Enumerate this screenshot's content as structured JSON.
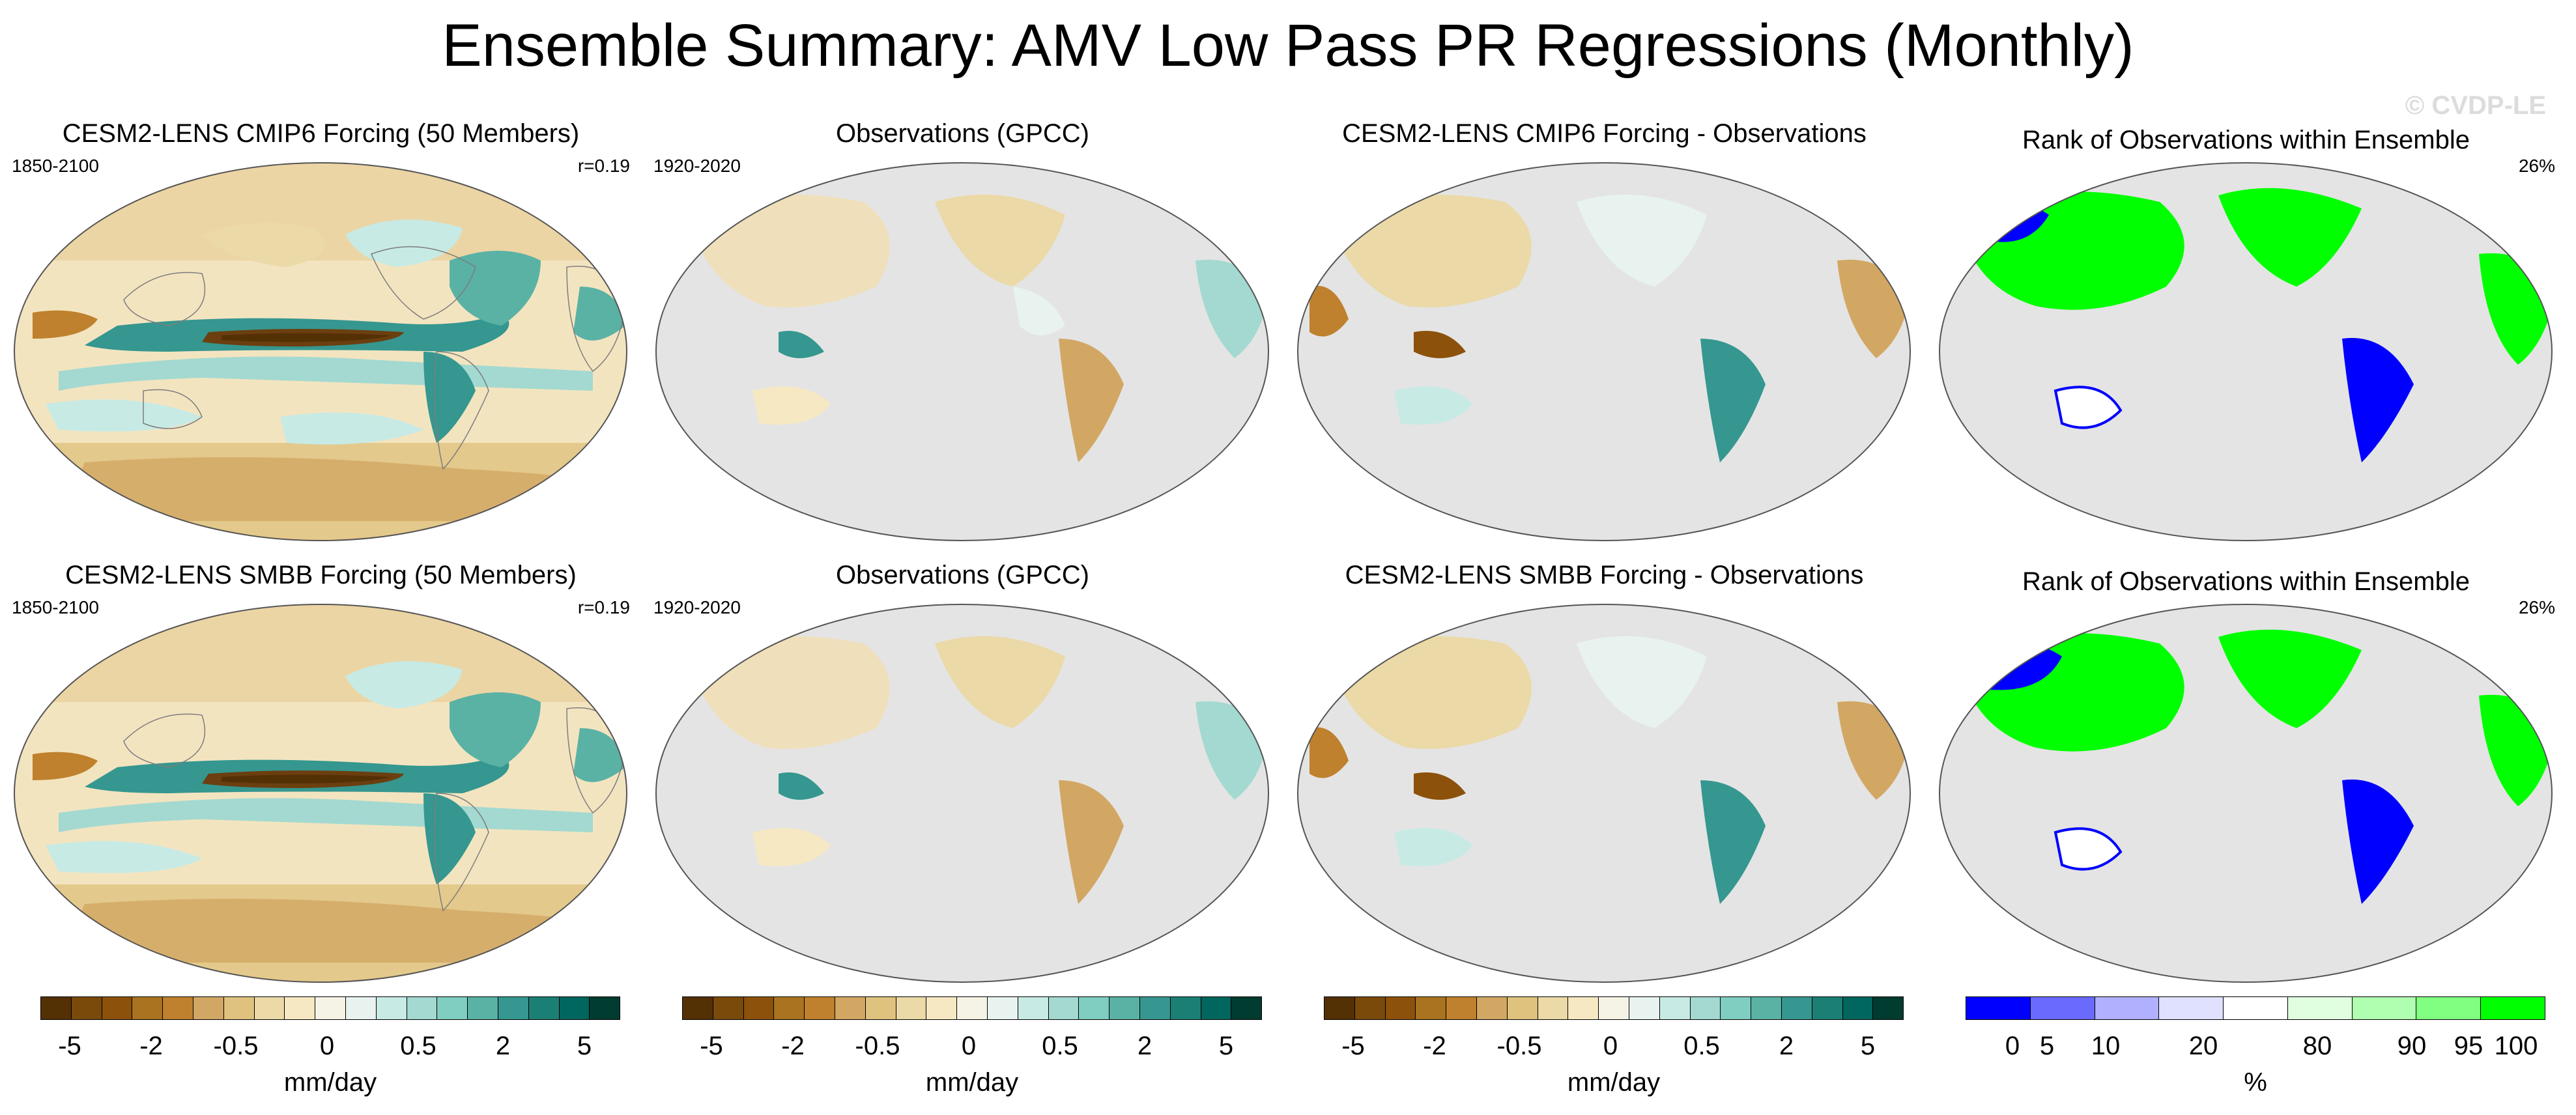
{
  "page": {
    "title": "Ensemble Summary: AMV Low Pass PR Regressions (Monthly)",
    "watermark": "© CVDP-LE"
  },
  "rows": [
    {
      "panels": [
        {
          "title": "CESM2-LENS CMIP6 Forcing (50 Members)",
          "left_label": "1850-2100",
          "right_label": "r=0.19",
          "type": "model"
        },
        {
          "title": "Observations (GPCC)",
          "left_label": "1920-2020",
          "right_label": "",
          "type": "obs"
        },
        {
          "title": "CESM2-LENS CMIP6 Forcing - Observations",
          "left_label": "",
          "right_label": "",
          "type": "diff"
        },
        {
          "title": "Rank of Observations within Ensemble",
          "left_label": "",
          "right_label": "26%",
          "type": "rank"
        }
      ]
    },
    {
      "panels": [
        {
          "title": "CESM2-LENS SMBB Forcing (50 Members)",
          "left_label": "1850-2100",
          "right_label": "r=0.19",
          "type": "model"
        },
        {
          "title": "Observations (GPCC)",
          "left_label": "1920-2020",
          "right_label": "",
          "type": "obs"
        },
        {
          "title": "CESM2-LENS SMBB Forcing - Observations",
          "left_label": "",
          "right_label": "",
          "type": "diff"
        },
        {
          "title": "Rank of Observations within Ensemble",
          "left_label": "",
          "right_label": "26%",
          "type": "rank"
        }
      ]
    }
  ],
  "colorbars": [
    {
      "unit": "mm/day",
      "ticks": [
        "-5",
        "-2",
        "-0.5",
        "0",
        "0.5",
        "2",
        "5"
      ],
      "colors": [
        "#543005",
        "#7a4a0b",
        "#8c510a",
        "#a9731f",
        "#bf812d",
        "#d2a764",
        "#dfc27d",
        "#ebd9a7",
        "#f6e8c3",
        "#f5f2e6",
        "#e8f3f0",
        "#c7eae5",
        "#a3d9d0",
        "#80cdc1",
        "#5ab2a5",
        "#35978f",
        "#1c7f76",
        "#01665e",
        "#003c30"
      ]
    },
    {
      "unit": "mm/day",
      "ticks": [
        "-5",
        "-2",
        "-0.5",
        "0",
        "0.5",
        "2",
        "5"
      ],
      "colors": [
        "#543005",
        "#7a4a0b",
        "#8c510a",
        "#a9731f",
        "#bf812d",
        "#d2a764",
        "#dfc27d",
        "#ebd9a7",
        "#f6e8c3",
        "#f5f2e6",
        "#e8f3f0",
        "#c7eae5",
        "#a3d9d0",
        "#80cdc1",
        "#5ab2a5",
        "#35978f",
        "#1c7f76",
        "#01665e",
        "#003c30"
      ]
    },
    {
      "unit": "mm/day",
      "ticks": [
        "-5",
        "-2",
        "-0.5",
        "0",
        "0.5",
        "2",
        "5"
      ],
      "colors": [
        "#543005",
        "#7a4a0b",
        "#8c510a",
        "#a9731f",
        "#bf812d",
        "#d2a764",
        "#dfc27d",
        "#ebd9a7",
        "#f6e8c3",
        "#f5f2e6",
        "#e8f3f0",
        "#c7eae5",
        "#a3d9d0",
        "#80cdc1",
        "#5ab2a5",
        "#35978f",
        "#1c7f76",
        "#01665e",
        "#003c30"
      ]
    },
    {
      "unit": "%",
      "ticks": [
        "0",
        "5",
        "10",
        "20",
        "80",
        "90",
        "95",
        "100"
      ],
      "colors": [
        "#0000ff",
        "#6a6aff",
        "#b0b0ff",
        "#e0e0ff",
        "#ffffff",
        "#e0ffe0",
        "#b0ffb0",
        "#80ff80",
        "#00ff00"
      ]
    }
  ],
  "colors": {
    "land_grey": "#e4e4e4",
    "coast": "#7d7d7d"
  }
}
